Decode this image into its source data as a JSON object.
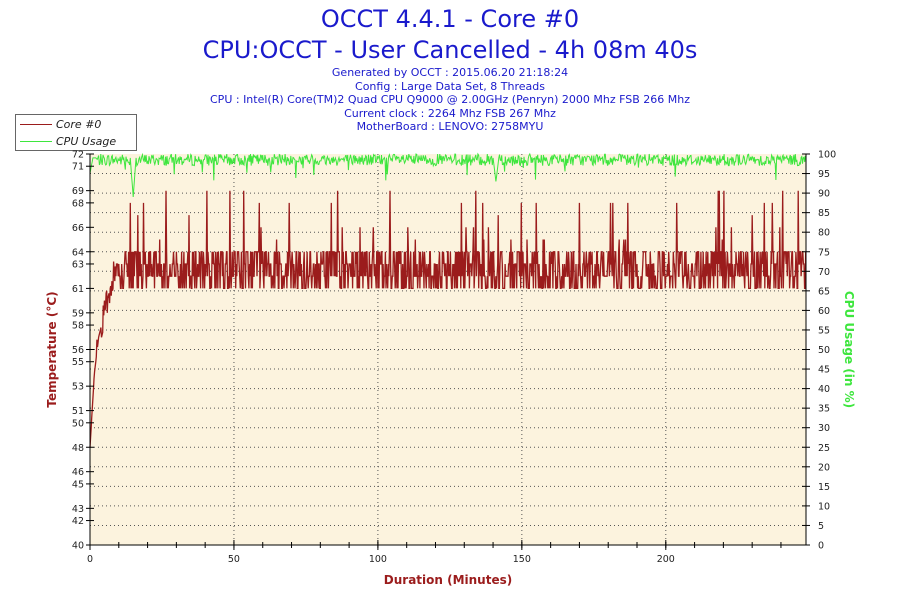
{
  "header": {
    "title": "OCCT 4.4.1 - Core #0",
    "subtitle": "CPU:OCCT - User Cancelled - 4h 08m 40s",
    "info_lines": [
      "Generated by OCCT : 2015.06.20 21:18:24",
      "Config : Large Data Set, 8 Threads",
      "CPU : Intel(R) Core(TM)2 Quad CPU Q9000 @ 2.00GHz (Penryn) 2000 Mhz FSB 266 Mhz",
      "Current clock : 2264 Mhz FSB 267 Mhz",
      "MotherBoard : LENOVO: 2758MYU"
    ]
  },
  "colors": {
    "temperature": "#9b1c1c",
    "cpu_usage": "#3ee63e",
    "title": "#1a1acc",
    "plot_background": "#fcf3de",
    "grid": "#555555"
  },
  "chart_data": {
    "type": "line",
    "xlabel": "Duration (Minutes)",
    "ylabel_left": "Temperature (°C)",
    "ylabel_right": "CPU Usage (in %)",
    "xlim": [
      0,
      248.7
    ],
    "ylim_left": [
      40,
      72
    ],
    "ylim_right": [
      0,
      100
    ],
    "x_ticks": [
      0,
      50,
      100,
      150,
      200
    ],
    "y_ticks_left": [
      40,
      42,
      43,
      45,
      46,
      48,
      50,
      51,
      53,
      55,
      56,
      58,
      59,
      61,
      63,
      64,
      66,
      68,
      69,
      71,
      72
    ],
    "y_ticks_right": [
      0,
      5,
      10,
      15,
      20,
      25,
      30,
      35,
      40,
      45,
      50,
      55,
      60,
      65,
      70,
      75,
      80,
      85,
      90,
      95,
      100
    ],
    "grid": true,
    "legend_position": "top-left",
    "series": [
      {
        "name": "Core #0",
        "axis": "left",
        "x": [
          0,
          0.5,
          1,
          1.5,
          2,
          3,
          4,
          5,
          6,
          7,
          8,
          9,
          10,
          12,
          15,
          20,
          25,
          30,
          40,
          50,
          60,
          70,
          80,
          90,
          100,
          110,
          120,
          130,
          140,
          150,
          160,
          170,
          180,
          190,
          200,
          210,
          220,
          230,
          240,
          245,
          248
        ],
        "values": [
          48,
          50,
          52,
          54,
          55,
          57,
          58,
          59,
          60,
          61,
          62,
          63,
          63,
          62,
          62,
          62,
          63,
          63,
          63,
          63,
          63,
          63,
          63,
          63,
          63,
          63,
          63,
          63,
          63,
          63,
          63,
          63,
          63,
          63,
          63,
          63,
          63,
          63,
          63,
          63,
          62
        ],
        "typical_range": [
          61,
          64
        ],
        "spike_max": 69
      },
      {
        "name": "CPU Usage",
        "axis": "right",
        "x": [
          0,
          1,
          14,
          15,
          16,
          100,
          140,
          141,
          142,
          248
        ],
        "values": [
          95,
          99,
          99,
          89,
          99,
          99,
          99,
          93,
          99,
          98
        ],
        "typical_range": [
          97,
          100
        ]
      }
    ]
  }
}
